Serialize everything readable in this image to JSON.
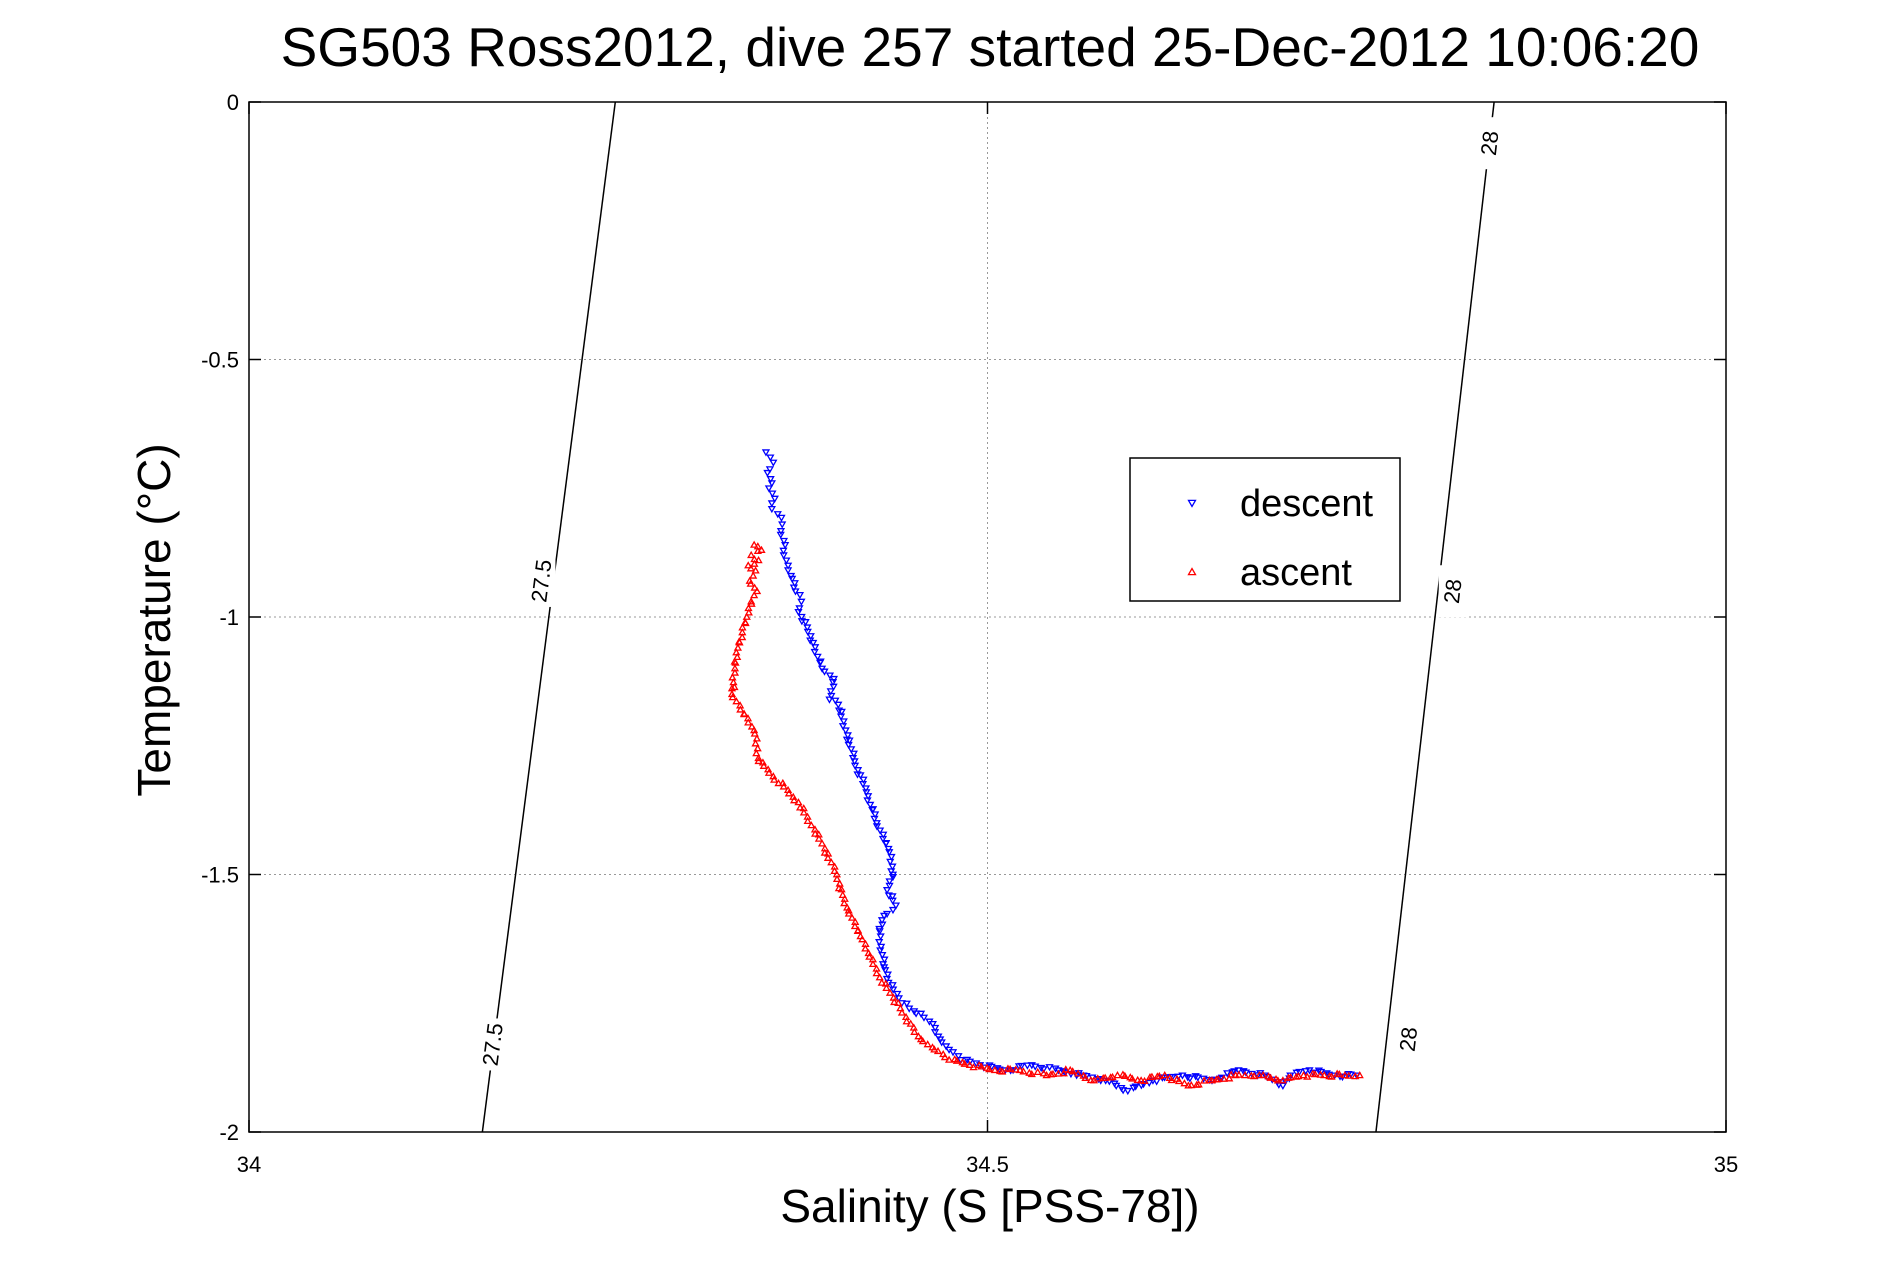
{
  "chart_data": {
    "type": "scatter",
    "title": "SG503 Ross2012, dive 257 started 25-Dec-2012 10:06:20",
    "xlabel": "Salinity (S [PSS-78])",
    "ylabel": "Temperature (°C)",
    "xlim": [
      34,
      35
    ],
    "ylim": [
      -2,
      0
    ],
    "xticks": [
      34,
      34.5,
      35
    ],
    "xtick_labels": [
      "34",
      "34.5",
      "35"
    ],
    "yticks": [
      0,
      -0.5,
      -1,
      -1.5,
      -2
    ],
    "ytick_labels": [
      "0",
      "-0.5",
      "-1",
      "-1.5",
      "-2"
    ],
    "grid": true,
    "legend": "right-center",
    "density_contours": [
      {
        "level_label": "27.5",
        "points": [
          [
            34.248,
            0
          ],
          [
            34.158,
            -2
          ]
        ],
        "label_positions": [
          [
            34.198,
            -0.93
          ],
          [
            34.165,
            -1.83
          ]
        ]
      },
      {
        "level_label": "28",
        "points": [
          [
            34.843,
            0
          ],
          [
            34.763,
            -2
          ]
        ],
        "label_positions": [
          [
            34.84,
            -0.08
          ],
          [
            34.815,
            -0.95
          ],
          [
            34.785,
            -1.82
          ]
        ]
      }
    ],
    "series": [
      {
        "name": "descent",
        "color": "#0000ff",
        "marker": "triangle-down",
        "points": [
          [
            34.35,
            -0.68
          ],
          [
            34.353,
            -0.69
          ],
          [
            34.355,
            -0.7
          ],
          [
            34.351,
            -0.72
          ],
          [
            34.354,
            -0.74
          ],
          [
            34.352,
            -0.75
          ],
          [
            34.356,
            -0.77
          ],
          [
            34.354,
            -0.79
          ],
          [
            34.358,
            -0.8
          ],
          [
            34.361,
            -0.82
          ],
          [
            34.36,
            -0.84
          ],
          [
            34.363,
            -0.86
          ],
          [
            34.362,
            -0.88
          ],
          [
            34.365,
            -0.9
          ],
          [
            34.367,
            -0.92
          ],
          [
            34.37,
            -0.95
          ],
          [
            34.374,
            -0.97
          ],
          [
            34.372,
            -0.99
          ],
          [
            34.378,
            -1.02
          ],
          [
            34.382,
            -1.05
          ],
          [
            34.388,
            -1.1
          ],
          [
            34.396,
            -1.12
          ],
          [
            34.393,
            -1.16
          ],
          [
            34.399,
            -1.17
          ],
          [
            34.404,
            -1.22
          ],
          [
            34.41,
            -1.28
          ],
          [
            34.418,
            -1.34
          ],
          [
            34.425,
            -1.4
          ],
          [
            34.433,
            -1.45
          ],
          [
            34.436,
            -1.5
          ],
          [
            34.432,
            -1.53
          ],
          [
            34.438,
            -1.56
          ],
          [
            34.43,
            -1.58
          ],
          [
            34.427,
            -1.61
          ],
          [
            34.428,
            -1.64
          ],
          [
            34.43,
            -1.68
          ],
          [
            34.433,
            -1.71
          ],
          [
            34.44,
            -1.74
          ],
          [
            34.447,
            -1.76
          ],
          [
            34.455,
            -1.77
          ],
          [
            34.463,
            -1.79
          ],
          [
            34.468,
            -1.82
          ],
          [
            34.474,
            -1.84
          ],
          [
            34.482,
            -1.86
          ],
          [
            34.495,
            -1.87
          ],
          [
            34.512,
            -1.88
          ],
          [
            34.53,
            -1.87
          ],
          [
            34.548,
            -1.88
          ],
          [
            34.565,
            -1.89
          ],
          [
            34.58,
            -1.9
          ],
          [
            34.595,
            -1.92
          ],
          [
            34.612,
            -1.9
          ],
          [
            34.632,
            -1.89
          ],
          [
            34.652,
            -1.9
          ],
          [
            34.67,
            -1.88
          ],
          [
            34.688,
            -1.89
          ],
          [
            34.7,
            -1.91
          ],
          [
            34.705,
            -1.89
          ],
          [
            34.718,
            -1.88
          ],
          [
            34.735,
            -1.89
          ],
          [
            34.75,
            -1.89
          ]
        ]
      },
      {
        "name": "ascent",
        "color": "#ff0000",
        "marker": "triangle-up",
        "points": [
          [
            34.342,
            -0.86
          ],
          [
            34.347,
            -0.87
          ],
          [
            34.34,
            -0.88
          ],
          [
            34.345,
            -0.89
          ],
          [
            34.338,
            -0.9
          ],
          [
            34.343,
            -0.91
          ],
          [
            34.339,
            -0.93
          ],
          [
            34.344,
            -0.95
          ],
          [
            34.34,
            -0.97
          ],
          [
            34.337,
            -1.0
          ],
          [
            34.334,
            -1.03
          ],
          [
            34.331,
            -1.06
          ],
          [
            34.329,
            -1.1
          ],
          [
            34.327,
            -1.15
          ],
          [
            34.342,
            -1.22
          ],
          [
            34.345,
            -1.28
          ],
          [
            34.372,
            -1.36
          ],
          [
            34.388,
            -1.44
          ],
          [
            34.398,
            -1.5
          ],
          [
            34.402,
            -1.54
          ],
          [
            34.406,
            -1.57
          ],
          [
            34.414,
            -1.62
          ],
          [
            34.42,
            -1.66
          ],
          [
            34.427,
            -1.7
          ],
          [
            34.434,
            -1.73
          ],
          [
            34.441,
            -1.76
          ],
          [
            34.448,
            -1.79
          ],
          [
            34.455,
            -1.82
          ],
          [
            34.464,
            -1.84
          ],
          [
            34.474,
            -1.86
          ],
          [
            34.488,
            -1.87
          ],
          [
            34.505,
            -1.88
          ],
          [
            34.522,
            -1.88
          ],
          [
            34.54,
            -1.89
          ],
          [
            34.556,
            -1.88
          ],
          [
            34.572,
            -1.9
          ],
          [
            34.588,
            -1.89
          ],
          [
            34.604,
            -1.9
          ],
          [
            34.62,
            -1.89
          ],
          [
            34.636,
            -1.91
          ],
          [
            34.652,
            -1.9
          ],
          [
            34.668,
            -1.89
          ],
          [
            34.684,
            -1.89
          ],
          [
            34.7,
            -1.9
          ],
          [
            34.714,
            -1.89
          ],
          [
            34.728,
            -1.89
          ],
          [
            34.742,
            -1.89
          ],
          [
            34.752,
            -1.89
          ]
        ]
      }
    ]
  }
}
